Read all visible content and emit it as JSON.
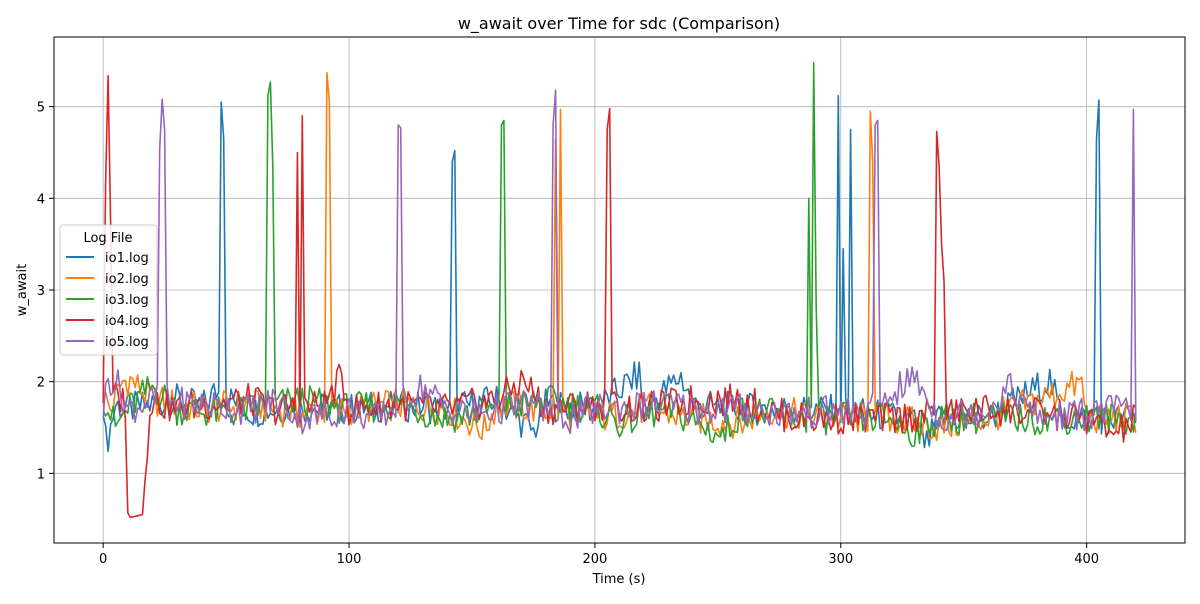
{
  "chart_data": {
    "type": "line",
    "title": "w_await over Time for sdc (Comparison)",
    "xlabel": "Time (s)",
    "ylabel": "w_await",
    "xlim": [
      -20,
      440
    ],
    "ylim": [
      0.24,
      5.76
    ],
    "xticks": [
      0,
      100,
      200,
      300,
      400
    ],
    "yticks": [
      1,
      2,
      3,
      4,
      5
    ],
    "grid": true,
    "legend": {
      "title": "Log File",
      "placement": "center-left",
      "entries": [
        "io1.log",
        "io2.log",
        "io3.log",
        "io4.log",
        "io5.log"
      ]
    },
    "series": [
      {
        "name": "io1.log",
        "color": "#1f77b4",
        "baseline": [
          [
            0,
            1.8
          ],
          [
            1,
            1.37
          ],
          [
            2,
            1.4
          ],
          [
            5,
            1.75
          ],
          [
            10,
            1.7
          ],
          [
            20,
            1.75
          ],
          [
            30,
            1.8
          ],
          [
            40,
            1.72
          ],
          [
            46,
            1.9
          ],
          [
            60,
            1.68
          ],
          [
            80,
            1.72
          ],
          [
            100,
            1.7
          ],
          [
            120,
            1.75
          ],
          [
            140,
            1.7
          ],
          [
            160,
            1.8
          ],
          [
            175,
            1.45
          ],
          [
            180,
            1.75
          ],
          [
            200,
            1.7
          ],
          [
            218,
            2.08
          ],
          [
            220,
            1.7
          ],
          [
            235,
            2.06
          ],
          [
            240,
            1.75
          ],
          [
            260,
            1.7
          ],
          [
            280,
            1.7
          ],
          [
            300,
            1.68
          ],
          [
            320,
            1.62
          ],
          [
            330,
            1.55
          ],
          [
            335,
            1.3
          ],
          [
            340,
            1.6
          ],
          [
            360,
            1.6
          ],
          [
            385,
            2.02
          ],
          [
            390,
            1.6
          ],
          [
            420,
            1.6
          ]
        ],
        "spikes": [
          [
            48,
            5.05
          ],
          [
            49,
            4.65
          ],
          [
            143,
            4.52
          ],
          [
            142,
            4.4
          ],
          [
            299,
            5.12
          ],
          [
            301,
            3.45
          ],
          [
            304,
            4.75
          ],
          [
            405,
            5.07
          ],
          [
            404,
            4.65
          ]
        ]
      },
      {
        "name": "io2.log",
        "color": "#ff7f0e",
        "baseline": [
          [
            0,
            1.85
          ],
          [
            3,
            1.7
          ],
          [
            8,
            2.0
          ],
          [
            11,
            2.02
          ],
          [
            20,
            1.8
          ],
          [
            40,
            1.7
          ],
          [
            60,
            1.75
          ],
          [
            80,
            1.65
          ],
          [
            100,
            1.7
          ],
          [
            120,
            1.75
          ],
          [
            140,
            1.7
          ],
          [
            155,
            1.47
          ],
          [
            160,
            1.75
          ],
          [
            180,
            1.7
          ],
          [
            200,
            1.6
          ],
          [
            220,
            1.7
          ],
          [
            240,
            1.6
          ],
          [
            260,
            1.55
          ],
          [
            270,
            1.7
          ],
          [
            280,
            1.65
          ],
          [
            300,
            1.6
          ],
          [
            320,
            1.6
          ],
          [
            340,
            1.5
          ],
          [
            360,
            1.6
          ],
          [
            398,
            1.98
          ],
          [
            400,
            1.6
          ],
          [
            420,
            1.6
          ]
        ],
        "spikes": [
          [
            91,
            5.37
          ],
          [
            92,
            5.05
          ],
          [
            184,
            4.65
          ],
          [
            186,
            4.97
          ],
          [
            312,
            4.95
          ],
          [
            313,
            4.4
          ]
        ]
      },
      {
        "name": "io3.log",
        "color": "#2ca02c",
        "baseline": [
          [
            0,
            1.85
          ],
          [
            5,
            1.5
          ],
          [
            10,
            1.7
          ],
          [
            20,
            1.95
          ],
          [
            30,
            1.7
          ],
          [
            50,
            1.65
          ],
          [
            60,
            1.7
          ],
          [
            80,
            1.8
          ],
          [
            100,
            1.7
          ],
          [
            120,
            1.75
          ],
          [
            140,
            1.6
          ],
          [
            160,
            1.7
          ],
          [
            180,
            1.8
          ],
          [
            200,
            1.7
          ],
          [
            210,
            1.55
          ],
          [
            230,
            1.7
          ],
          [
            252,
            1.4
          ],
          [
            260,
            1.7
          ],
          [
            280,
            1.6
          ],
          [
            300,
            1.6
          ],
          [
            320,
            1.6
          ],
          [
            328,
            1.44
          ],
          [
            340,
            1.6
          ],
          [
            360,
            1.6
          ],
          [
            380,
            1.6
          ],
          [
            400,
            1.6
          ],
          [
            420,
            1.6
          ]
        ],
        "spikes": [
          [
            67,
            5.12
          ],
          [
            68,
            5.27
          ],
          [
            69,
            4.35
          ],
          [
            162,
            4.8
          ],
          [
            163,
            4.85
          ],
          [
            287,
            4.0
          ],
          [
            289,
            5.48
          ],
          [
            290,
            2.8
          ]
        ]
      },
      {
        "name": "io4.log",
        "color": "#d62728",
        "baseline": [
          [
            0,
            1.85
          ],
          [
            1,
            4.2
          ],
          [
            2,
            5.41
          ],
          [
            3,
            3.6
          ],
          [
            4,
            1.85
          ],
          [
            8,
            1.8
          ],
          [
            9,
            1.6
          ],
          [
            10,
            0.57
          ],
          [
            11,
            0.52
          ],
          [
            13,
            0.53
          ],
          [
            16,
            0.55
          ],
          [
            18,
            1.3
          ],
          [
            19,
            1.8
          ],
          [
            30,
            1.7
          ],
          [
            40,
            1.75
          ],
          [
            60,
            1.8
          ],
          [
            70,
            1.7
          ],
          [
            90,
            1.75
          ],
          [
            97,
            2.05
          ],
          [
            100,
            1.7
          ],
          [
            120,
            1.75
          ],
          [
            140,
            1.7
          ],
          [
            160,
            1.8
          ],
          [
            171,
            2.02
          ],
          [
            180,
            1.7
          ],
          [
            200,
            1.75
          ],
          [
            220,
            1.7
          ],
          [
            240,
            1.8
          ],
          [
            260,
            1.8
          ],
          [
            280,
            1.6
          ],
          [
            300,
            1.6
          ],
          [
            320,
            1.6
          ],
          [
            360,
            1.7
          ],
          [
            380,
            1.65
          ],
          [
            400,
            1.6
          ],
          [
            412,
            1.42
          ],
          [
            420,
            1.6
          ]
        ],
        "spikes": [
          [
            79,
            4.5
          ],
          [
            81,
            4.9
          ],
          [
            205,
            4.75
          ],
          [
            206,
            4.98
          ],
          [
            339,
            4.73
          ],
          [
            340,
            4.35
          ],
          [
            341,
            3.5
          ],
          [
            342,
            3.1
          ]
        ]
      },
      {
        "name": "io5.log",
        "color": "#9467bd",
        "baseline": [
          [
            0,
            1.7
          ],
          [
            2,
            2.02
          ],
          [
            5,
            2.02
          ],
          [
            10,
            1.7
          ],
          [
            20,
            1.8
          ],
          [
            40,
            1.75
          ],
          [
            60,
            1.7
          ],
          [
            70,
            1.8
          ],
          [
            80,
            1.6
          ],
          [
            100,
            1.7
          ],
          [
            110,
            1.6
          ],
          [
            115,
            1.65
          ],
          [
            130,
            1.95
          ],
          [
            140,
            1.7
          ],
          [
            150,
            1.65
          ],
          [
            170,
            1.75
          ],
          [
            180,
            1.7
          ],
          [
            190,
            1.6
          ],
          [
            200,
            1.7
          ],
          [
            230,
            1.75
          ],
          [
            240,
            1.7
          ],
          [
            260,
            1.7
          ],
          [
            280,
            1.65
          ],
          [
            300,
            1.68
          ],
          [
            310,
            1.65
          ],
          [
            330,
            2.05
          ],
          [
            340,
            1.6
          ],
          [
            360,
            1.7
          ],
          [
            368,
            1.95
          ],
          [
            380,
            1.6
          ],
          [
            400,
            1.65
          ],
          [
            412,
            1.7
          ],
          [
            418,
            1.7
          ]
        ],
        "spikes": [
          [
            23,
            4.55
          ],
          [
            24,
            5.08
          ],
          [
            25,
            4.75
          ],
          [
            120,
            4.8
          ],
          [
            121,
            4.77
          ],
          [
            183,
            4.8
          ],
          [
            184,
            5.18
          ],
          [
            314,
            4.8
          ],
          [
            315,
            4.85
          ],
          [
            419,
            4.97
          ]
        ]
      }
    ]
  }
}
